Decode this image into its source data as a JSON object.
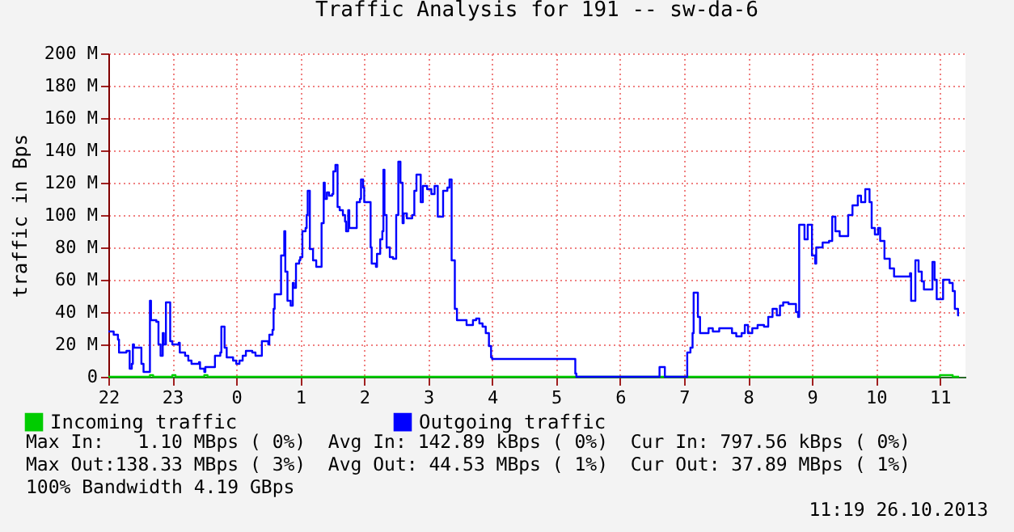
{
  "chart_data": {
    "type": "step",
    "title": "Traffic Analysis for 191 -- sw-da-6",
    "ylabel": "traffic in Bps",
    "xlim": [
      "2013-10-25T22:00",
      "2013-10-26T11:24"
    ],
    "xticks": [
      {
        "value": "2013-10-25T22:00",
        "label": "22"
      },
      {
        "value": "2013-10-25T23:00",
        "label": "23"
      },
      {
        "value": "2013-10-26T00:00",
        "label": "0"
      },
      {
        "value": "2013-10-26T01:00",
        "label": "1"
      },
      {
        "value": "2013-10-26T02:00",
        "label": "2"
      },
      {
        "value": "2013-10-26T03:00",
        "label": "3"
      },
      {
        "value": "2013-10-26T04:00",
        "label": "4"
      },
      {
        "value": "2013-10-26T05:00",
        "label": "5"
      },
      {
        "value": "2013-10-26T06:00",
        "label": "6"
      },
      {
        "value": "2013-10-26T07:00",
        "label": "7"
      },
      {
        "value": "2013-10-26T08:00",
        "label": "8"
      },
      {
        "value": "2013-10-26T09:00",
        "label": "9"
      },
      {
        "value": "2013-10-26T10:00",
        "label": "10"
      },
      {
        "value": "2013-10-26T11:00",
        "label": "11"
      }
    ],
    "ylim": [
      0,
      200
    ],
    "yticks": [
      0,
      {
        "value": 20,
        "label": "20 M"
      },
      {
        "value": 40,
        "label": "40 M"
      },
      {
        "value": 60,
        "label": "60 M"
      },
      {
        "value": 80,
        "label": "80 M"
      },
      {
        "value": 100,
        "label": "100 M"
      },
      {
        "value": 120,
        "label": "120 M"
      },
      {
        "value": 140,
        "label": "140 M"
      },
      {
        "value": 160,
        "label": "160 M"
      },
      {
        "value": 180,
        "label": "180 M"
      },
      {
        "value": 200,
        "label": "200 M"
      }
    ],
    "grid": true,
    "legend": "bottom left",
    "marker": "none",
    "line_style": "solid",
    "series": [
      {
        "name": "Incoming traffic",
        "color": "#00cc00",
        "x": [
          "2013-10-25T22:00",
          "2013-10-25T22:36",
          "2013-10-25T22:39",
          "2013-10-25T22:42",
          "2013-10-25T23:00",
          "2013-10-25T23:03",
          "2013-10-25T23:30",
          "2013-10-25T23:33",
          "2013-10-26T11:00",
          "2013-10-26T11:12",
          "2013-10-26T11:18"
        ],
        "values": [
          0,
          0,
          1,
          0,
          1,
          0,
          1,
          0,
          1,
          0,
          0
        ]
      },
      {
        "name": "Outgoing traffic",
        "color": "#0000ff",
        "x": [
          "2013-10-25T22:00",
          "2013-10-25T22:05",
          "2013-10-25T22:09",
          "2013-10-25T22:10",
          "2013-10-25T22:17",
          "2013-10-25T22:20",
          "2013-10-25T22:22",
          "2013-10-25T22:23",
          "2013-10-25T22:24",
          "2013-10-25T22:30",
          "2013-10-25T22:31",
          "2013-10-25T22:33",
          "2013-10-25T22:38",
          "2013-10-25T22:39",
          "2013-10-25T22:40",
          "2013-10-25T22:45",
          "2013-10-25T22:47",
          "2013-10-25T22:49",
          "2013-10-25T22:51",
          "2013-10-25T22:52",
          "2013-10-25T22:54",
          "2013-10-25T22:57",
          "2013-10-25T22:58",
          "2013-10-25T23:00",
          "2013-10-25T23:06",
          "2013-10-25T23:07",
          "2013-10-25T23:12",
          "2013-10-25T23:15",
          "2013-10-25T23:18",
          "2013-10-25T23:25",
          "2013-10-25T23:26",
          "2013-10-25T23:30",
          "2013-10-25T23:31",
          "2013-10-25T23:39",
          "2013-10-25T23:40",
          "2013-10-25T23:45",
          "2013-10-25T23:46",
          "2013-10-25T23:48",
          "2013-10-25T23:49",
          "2013-10-25T23:51",
          "2013-10-25T23:57",
          "2013-10-26T00:00",
          "2013-10-26T00:03",
          "2013-10-26T00:06",
          "2013-10-26T00:09",
          "2013-10-26T00:15",
          "2013-10-26T00:18",
          "2013-10-26T00:24",
          "2013-10-26T00:29",
          "2013-10-26T00:30",
          "2013-10-26T00:31",
          "2013-10-26T00:34",
          "2013-10-26T00:35",
          "2013-10-26T00:36",
          "2013-10-26T00:40",
          "2013-10-26T00:42",
          "2013-10-26T00:44",
          "2013-10-26T00:45",
          "2013-10-26T00:46",
          "2013-10-26T00:48",
          "2013-10-26T00:51",
          "2013-10-26T00:53",
          "2013-10-26T00:54",
          "2013-10-26T00:56",
          "2013-10-26T00:59",
          "2013-10-26T01:00",
          "2013-10-26T01:02",
          "2013-10-26T01:05",
          "2013-10-26T01:06",
          "2013-10-26T01:07",
          "2013-10-26T01:09",
          "2013-10-26T01:12",
          "2013-10-26T01:15",
          "2013-10-26T01:18",
          "2013-10-26T01:20",
          "2013-10-26T01:22",
          "2013-10-26T01:23",
          "2013-10-26T01:25",
          "2013-10-26T01:27",
          "2013-10-26T01:30",
          "2013-10-26T01:31",
          "2013-10-26T01:33",
          "2013-10-26T01:35",
          "2013-10-26T01:37",
          "2013-10-26T01:40",
          "2013-10-26T01:42",
          "2013-10-26T01:43",
          "2013-10-26T01:45",
          "2013-10-26T01:46",
          "2013-10-26T01:51",
          "2013-10-26T01:53",
          "2013-10-26T01:56",
          "2013-10-26T01:57",
          "2013-10-26T01:59",
          "2013-10-26T02:00",
          "2013-10-26T02:04",
          "2013-10-26T02:06",
          "2013-10-26T02:07",
          "2013-10-26T02:11",
          "2013-10-26T02:12",
          "2013-10-26T02:15",
          "2013-10-26T02:17",
          "2013-10-26T02:18",
          "2013-10-26T02:19",
          "2013-10-26T02:21",
          "2013-10-26T02:24",
          "2013-10-26T02:27",
          "2013-10-26T02:30",
          "2013-10-26T02:32",
          "2013-10-26T02:34",
          "2013-10-26T02:36",
          "2013-10-26T02:37",
          "2013-10-26T02:40",
          "2013-10-26T02:45",
          "2013-10-26T02:47",
          "2013-10-26T02:49",
          "2013-10-26T02:51",
          "2013-10-26T02:53",
          "2013-10-26T02:55",
          "2013-10-26T02:59",
          "2013-10-26T03:03",
          "2013-10-26T03:06",
          "2013-10-26T03:09",
          "2013-10-26T03:12",
          "2013-10-26T03:14",
          "2013-10-26T03:18",
          "2013-10-26T03:20",
          "2013-10-26T03:22",
          "2013-10-26T03:25",
          "2013-10-26T03:27",
          "2013-10-26T03:33",
          "2013-10-26T03:36",
          "2013-10-26T03:42",
          "2013-10-26T03:45",
          "2013-10-26T03:48",
          "2013-10-26T03:51",
          "2013-10-26T03:54",
          "2013-10-26T03:57",
          "2013-10-26T03:59",
          "2013-10-26T04:00",
          "2013-10-26T05:17",
          "2013-10-26T05:18",
          "2013-10-26T05:19",
          "2013-10-26T06:37",
          "2013-10-26T06:42",
          "2013-10-26T07:03",
          "2013-10-26T07:06",
          "2013-10-26T07:08",
          "2013-10-26T07:09",
          "2013-10-26T07:12",
          "2013-10-26T07:13",
          "2013-10-26T07:15",
          "2013-10-26T07:23",
          "2013-10-26T07:27",
          "2013-10-26T07:33",
          "2013-10-26T07:41",
          "2013-10-26T07:45",
          "2013-10-26T07:49",
          "2013-10-26T07:54",
          "2013-10-26T07:57",
          "2013-10-26T08:00",
          "2013-10-26T08:04",
          "2013-10-26T08:09",
          "2013-10-26T08:15",
          "2013-10-26T08:19",
          "2013-10-26T08:23",
          "2013-10-26T08:27",
          "2013-10-26T08:30",
          "2013-10-26T08:33",
          "2013-10-26T08:38",
          "2013-10-26T08:45",
          "2013-10-26T08:47",
          "2013-10-26T08:48",
          "2013-10-26T08:53",
          "2013-10-26T08:56",
          "2013-10-26T08:59",
          "2013-10-26T09:00",
          "2013-10-26T09:03",
          "2013-10-26T09:04",
          "2013-10-26T09:10",
          "2013-10-26T09:16",
          "2013-10-26T09:19",
          "2013-10-26T09:22",
          "2013-10-26T09:26",
          "2013-10-26T09:30",
          "2013-10-26T09:34",
          "2013-10-26T09:38",
          "2013-10-26T09:43",
          "2013-10-26T09:46",
          "2013-10-26T09:49",
          "2013-10-26T09:50",
          "2013-10-26T09:53",
          "2013-10-26T09:54",
          "2013-10-26T09:56",
          "2013-10-26T09:59",
          "2013-10-26T10:02",
          "2013-10-26T10:04",
          "2013-10-26T10:08",
          "2013-10-26T10:13",
          "2013-10-26T10:17",
          "2013-10-26T10:29",
          "2013-10-26T10:32",
          "2013-10-26T10:33",
          "2013-10-26T10:37",
          "2013-10-26T10:40",
          "2013-10-26T10:43",
          "2013-10-26T10:45",
          "2013-10-26T10:50",
          "2013-10-26T10:53",
          "2013-10-26T10:55",
          "2013-10-26T10:57",
          "2013-10-26T11:02",
          "2013-10-26T11:03",
          "2013-10-26T11:09",
          "2013-10-26T11:12",
          "2013-10-26T11:14",
          "2013-10-26T11:17",
          "2013-10-26T11:18"
        ],
        "values": [
          28,
          26,
          23,
          15,
          16,
          5,
          8,
          20,
          18,
          18,
          8,
          3,
          3,
          47,
          35,
          34,
          20,
          13,
          27,
          20,
          46,
          46,
          22,
          20,
          21,
          15,
          13,
          10,
          8,
          9,
          5,
          3,
          6,
          6,
          13,
          15,
          31,
          31,
          18,
          12,
          10,
          8,
          10,
          13,
          16,
          15,
          13,
          22,
          22,
          20,
          26,
          29,
          42,
          51,
          51,
          75,
          75,
          90,
          65,
          47,
          44,
          58,
          55,
          70,
          72,
          74,
          90,
          92,
          100,
          115,
          79,
          72,
          68,
          68,
          95,
          120,
          110,
          114,
          112,
          113,
          127,
          131,
          105,
          103,
          100,
          96,
          90,
          103,
          92,
          92,
          108,
          110,
          122,
          117,
          108,
          108,
          80,
          70,
          68,
          76,
          85,
          90,
          128,
          100,
          80,
          74,
          73,
          100,
          133,
          120,
          95,
          101,
          98,
          100,
          115,
          125,
          125,
          108,
          118,
          116,
          113,
          118,
          99,
          99,
          115,
          117,
          122,
          72,
          42,
          35,
          35,
          32,
          35,
          36,
          33,
          31,
          27,
          19,
          12,
          11,
          11,
          2,
          0,
          6,
          0,
          15,
          18,
          27,
          52,
          52,
          37,
          27,
          30,
          28,
          30,
          30,
          27,
          25,
          27,
          32,
          27,
          30,
          32,
          31,
          37,
          42,
          38,
          44,
          46,
          45,
          40,
          37,
          94,
          85,
          94,
          94,
          75,
          70,
          80,
          83,
          84,
          99,
          90,
          87,
          87,
          100,
          106,
          112,
          108,
          108,
          116,
          116,
          108,
          92,
          88,
          92,
          84,
          73,
          67,
          62,
          62,
          64,
          47,
          72,
          65,
          59,
          54,
          54,
          71,
          60,
          48,
          48,
          60,
          58,
          53,
          42,
          38,
          38
        ]
      }
    ],
    "annotations": [
      "Max In:   1.10 MBps ( 0%)  Avg In: 142.89 kBps ( 0%)  Cur In: 797.56 kBps ( 0%)",
      "Max Out:138.33 MBps ( 3%)  Avg Out: 44.53 MBps ( 1%)  Cur Out: 37.89 MBps ( 1%)",
      "100% Bandwidth 4.19 GBps",
      "11:19 26.10.2013"
    ]
  }
}
